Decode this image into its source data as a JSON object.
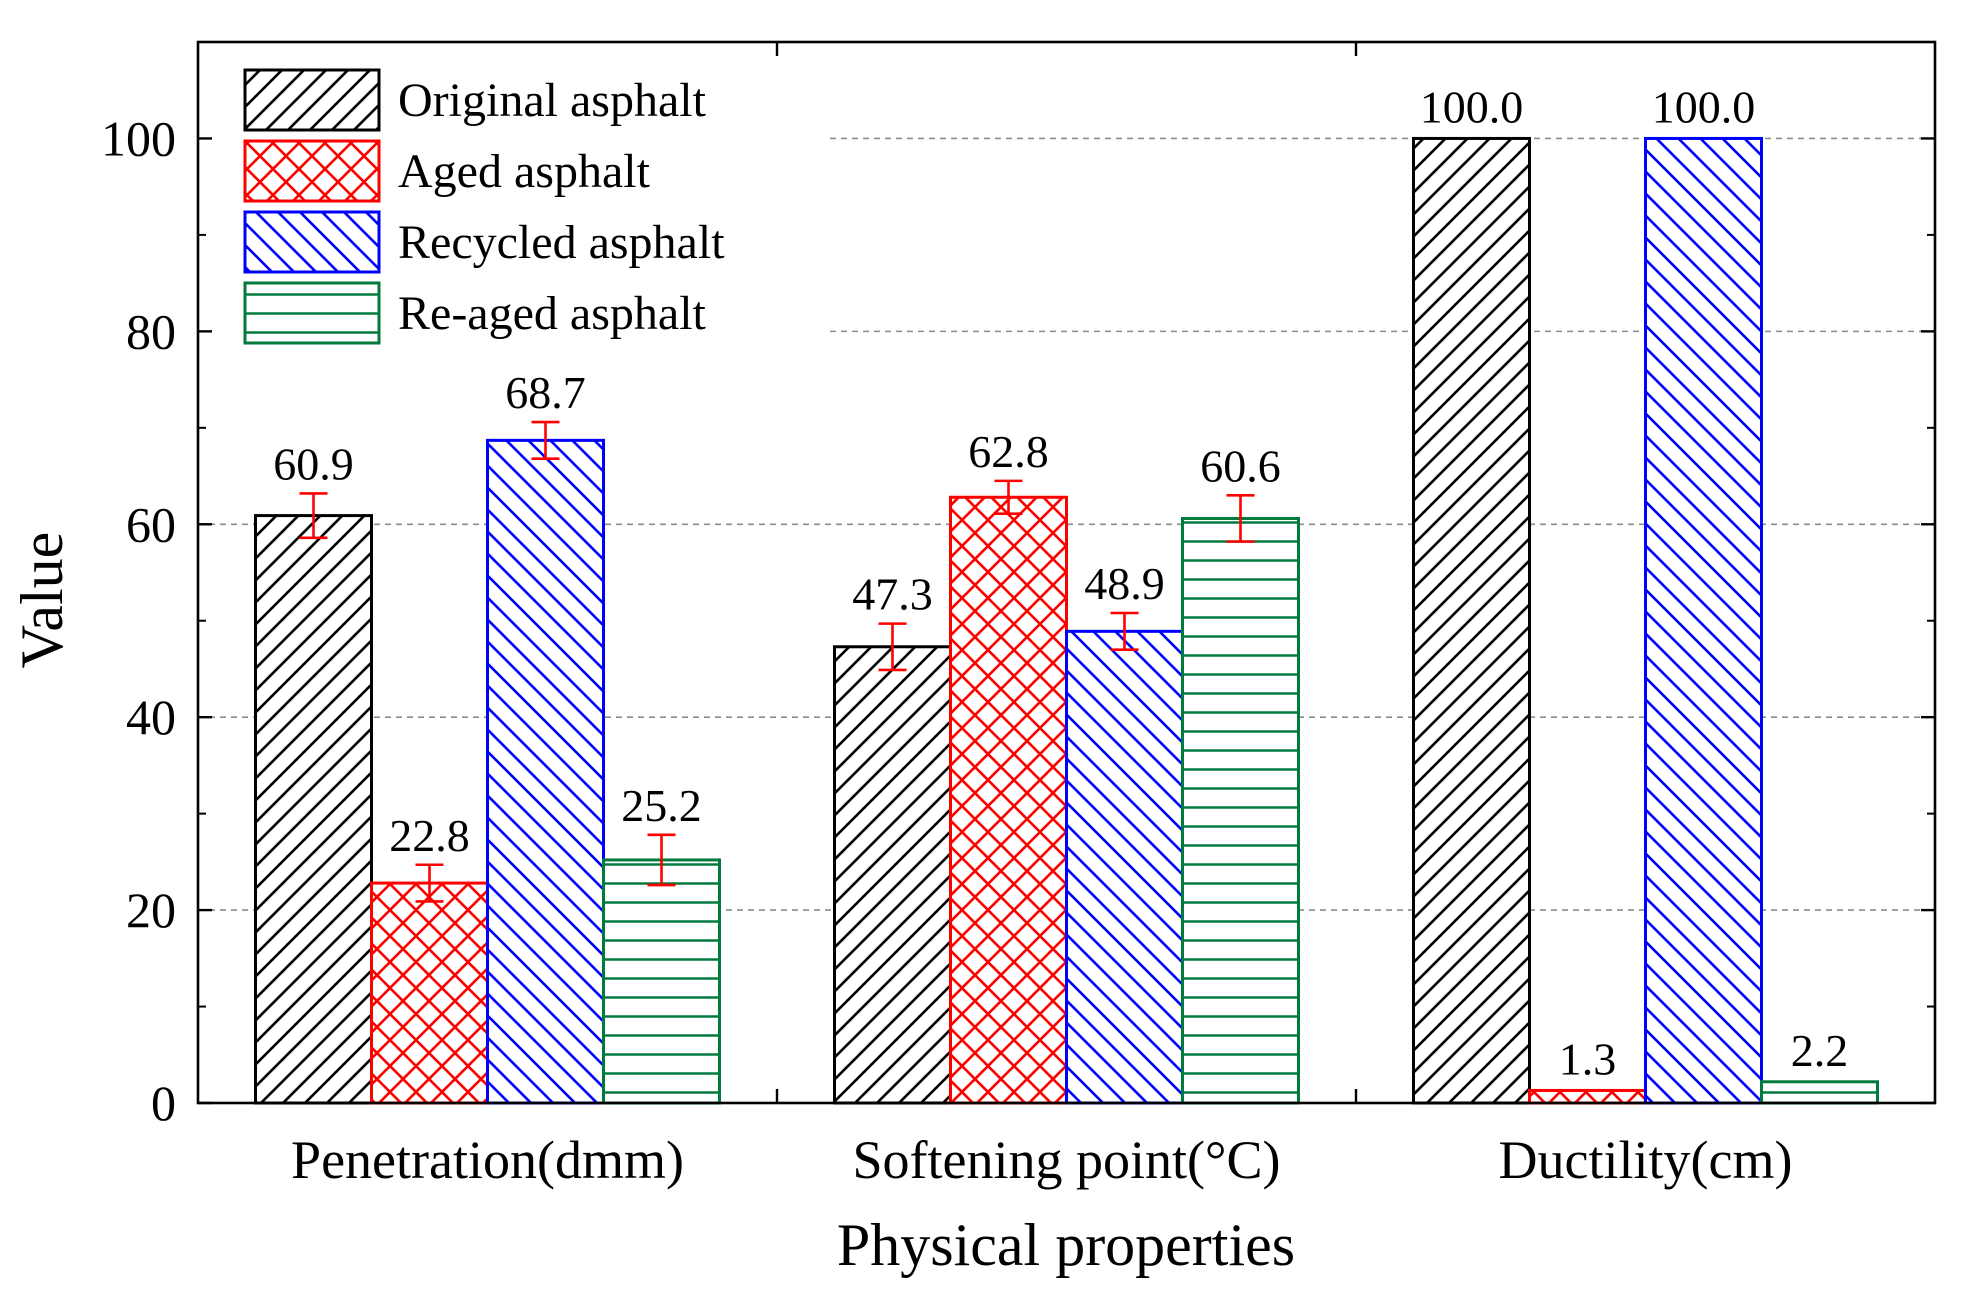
{
  "chart_data": {
    "type": "bar",
    "title": "",
    "xlabel": "Physical properties",
    "ylabel": "Value",
    "ylim": [
      0,
      110
    ],
    "yticks": [
      0,
      20,
      40,
      60,
      80,
      100
    ],
    "grid": "dashed horizontal at major ticks",
    "legend_position": "top-left",
    "categories": [
      "Penetration(dmm)",
      "Softening point(°C)",
      "Ductility(cm)"
    ],
    "series": [
      {
        "name": "Original asphalt",
        "color": "#000000",
        "pattern": "diagonal-up",
        "values": [
          60.9,
          47.3,
          100.0
        ],
        "labels": [
          "60.9",
          "47.3",
          "100.0"
        ],
        "errors": [
          2.3,
          2.4,
          null
        ]
      },
      {
        "name": "Aged asphalt",
        "color": "#ff0000",
        "pattern": "crosshatch",
        "values": [
          22.8,
          62.8,
          1.3
        ],
        "labels": [
          "22.8",
          "62.8",
          "1.3"
        ],
        "errors": [
          1.9,
          1.7,
          null
        ]
      },
      {
        "name": "Recycled asphalt",
        "color": "#0000ff",
        "pattern": "diagonal-down",
        "values": [
          68.7,
          48.9,
          100.0
        ],
        "labels": [
          "68.7",
          "48.9",
          "100.0"
        ],
        "errors": [
          1.9,
          1.9,
          null
        ]
      },
      {
        "name": "Re-aged asphalt",
        "color": "#007a3d",
        "pattern": "horizontal",
        "values": [
          25.2,
          60.6,
          2.2
        ],
        "labels": [
          "25.2",
          "60.6",
          "2.2"
        ],
        "errors": [
          2.6,
          2.4,
          null
        ]
      }
    ],
    "error_bar_color": "#ff0000"
  }
}
